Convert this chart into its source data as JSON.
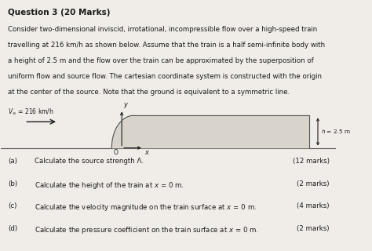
{
  "title": "Question 3 (20 Marks)",
  "paragraph": "Consider two-dimensional inviscid, irrotational, incompressible flow over a high-speed train\ntravelling at 216 km/h as shown below. Assume that the train is a half semi-infinite body with\na height of 2.5 m and the flow over the train can be approximated by the superposition of\nuniform flow and source flow. The cartesian coordinate system is constructed with the origin\nat the center of the source. Note that the ground is equivalent to a symmetric line.",
  "flow_label": "$V_{\\infty}$ = 216 km/h",
  "height_label": "$h$ = 2.5 m",
  "questions": [
    {
      "label": "(a)",
      "text": "Calculate the source strength Λ.",
      "marks": "(12 marks)"
    },
    {
      "label": "(b)",
      "text": "Calculate the height of the train at $x$ = 0 m.",
      "marks": "(2 marks)"
    },
    {
      "label": "(c)",
      "text": "Calculate the velocity magnitude on the train surface at $x$ = 0 m.",
      "marks": "(4 marks)"
    },
    {
      "label": "(d)",
      "text": "Calculate the pressure coefficient on the train surface at $x$ = 0 m.",
      "marks": "(2 marks)"
    }
  ],
  "bg_color": "#f0ede8",
  "text_color": "#1a1a1a"
}
